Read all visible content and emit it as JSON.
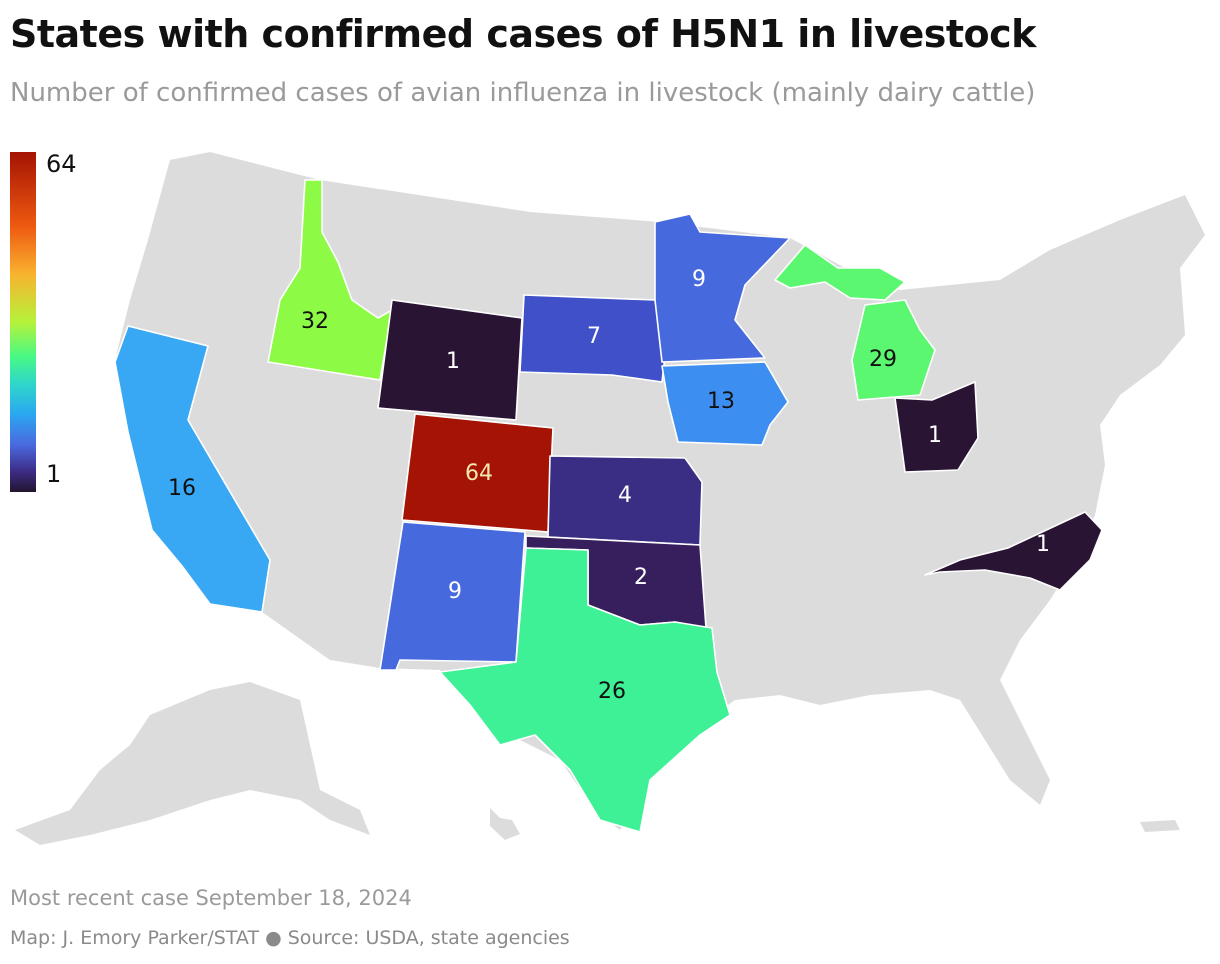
{
  "title": "States with confirmed cases of H5N1 in livestock",
  "subtitle": "Number of confirmed cases of avian influenza in livestock (mainly dairy cattle)",
  "legend": {
    "max_label": "64",
    "min_label": "1",
    "scale": "continuous",
    "colors": [
      "#23142e",
      "#3d2c86",
      "#4a6ae0",
      "#2aa8f0",
      "#49f983",
      "#b6f23a",
      "#f8b32f",
      "#ef5a11",
      "#a41303"
    ]
  },
  "states": [
    {
      "name": "Idaho",
      "value": 32,
      "label": "32",
      "color": "#8dfb45"
    },
    {
      "name": "Wyoming",
      "value": 1,
      "label": "1",
      "color": "#2a1434"
    },
    {
      "name": "South Dakota",
      "value": 7,
      "label": "7",
      "color": "#4050c8"
    },
    {
      "name": "Minnesota",
      "value": 9,
      "label": "9",
      "color": "#4669de"
    },
    {
      "name": "Michigan",
      "value": 29,
      "label": "29",
      "color": "#5cf771"
    },
    {
      "name": "California",
      "value": 16,
      "label": "16",
      "color": "#39a8f4"
    },
    {
      "name": "Iowa",
      "value": 13,
      "label": "13",
      "color": "#3c8ff0"
    },
    {
      "name": "Ohio",
      "value": 1,
      "label": "1",
      "color": "#2a1434"
    },
    {
      "name": "Colorado",
      "value": 64,
      "label": "64",
      "color": "#a41303"
    },
    {
      "name": "Kansas",
      "value": 4,
      "label": "4",
      "color": "#3a2e84"
    },
    {
      "name": "New Mexico",
      "value": 9,
      "label": "9",
      "color": "#4669de"
    },
    {
      "name": "Oklahoma",
      "value": 2,
      "label": "2",
      "color": "#361f5c"
    },
    {
      "name": "Texas",
      "value": 26,
      "label": "26",
      "color": "#3ef096"
    },
    {
      "name": "North Carolina",
      "value": 1,
      "label": "1",
      "color": "#2a1434"
    }
  ],
  "base_color": "#dcdcdc",
  "note": "Most recent case September 18, 2024",
  "credit": "Map: J. Emory Parker/STAT",
  "credit_sep": "●",
  "source": "Source: USDA, state agencies"
}
